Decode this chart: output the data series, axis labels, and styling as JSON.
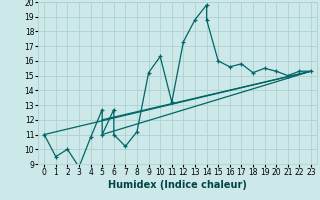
{
  "xlabel": "Humidex (Indice chaleur)",
  "ylabel": "",
  "background_color": "#cde8e8",
  "grid_color": "#b0d0d0",
  "line_color": "#006666",
  "xlim": [
    -0.5,
    23.5
  ],
  "ylim": [
    9,
    20
  ],
  "xticks": [
    0,
    1,
    2,
    3,
    4,
    5,
    6,
    7,
    8,
    9,
    10,
    11,
    12,
    13,
    14,
    15,
    16,
    17,
    18,
    19,
    20,
    21,
    22,
    23
  ],
  "yticks": [
    9,
    10,
    11,
    12,
    13,
    14,
    15,
    16,
    17,
    18,
    19,
    20
  ],
  "line1_x": [
    0,
    1,
    2,
    3,
    4,
    5,
    5,
    6,
    6,
    7,
    8,
    9,
    10,
    11,
    12,
    13,
    14,
    14,
    15,
    16,
    17,
    18,
    19,
    20,
    21,
    22,
    23
  ],
  "line1_y": [
    11,
    9.5,
    10,
    8.8,
    10.8,
    12.7,
    11.0,
    12.7,
    11.0,
    10.2,
    11.2,
    15.2,
    16.3,
    13.2,
    17.3,
    18.8,
    19.8,
    18.8,
    16.0,
    15.6,
    15.8,
    15.2,
    15.5,
    15.3,
    15.0,
    15.3,
    15.3
  ],
  "line2_x": [
    0,
    23
  ],
  "line2_y": [
    11,
    15.3
  ],
  "line3_x": [
    5,
    23
  ],
  "line3_y": [
    12.0,
    15.3
  ],
  "line4_x": [
    5,
    23
  ],
  "line4_y": [
    11.0,
    15.3
  ],
  "tick_fontsize": 5.5,
  "xlabel_fontsize": 7
}
